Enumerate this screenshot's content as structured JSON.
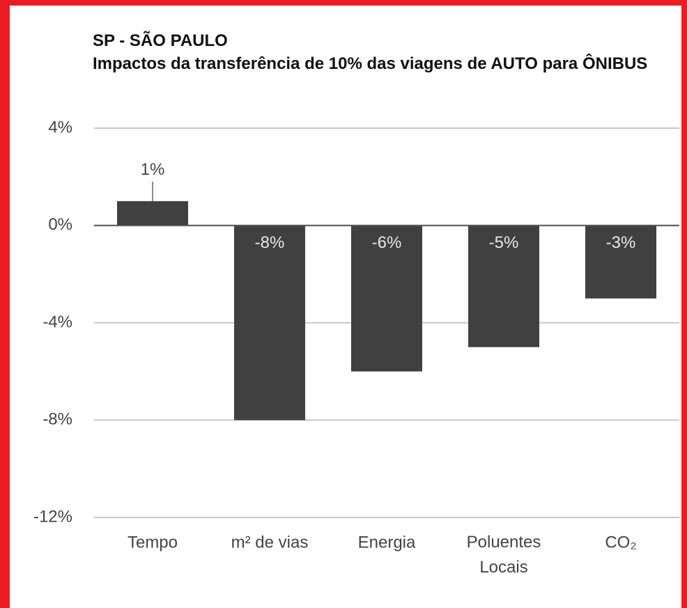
{
  "chart_data": {
    "type": "bar",
    "title": "SP - SÃO PAULO",
    "subtitle": "Impactos da transferência de 10% das viagens de AUTO para ÔNIBUS",
    "categories": [
      "Tempo",
      "m² de vias",
      "Energia",
      "Poluentes Locais",
      "CO₂"
    ],
    "values": [
      1,
      -8,
      -6,
      -5,
      -3
    ],
    "value_labels": [
      "1%",
      "-8%",
      "-6%",
      "-5%",
      "-3%"
    ],
    "color": "#404040",
    "ylim": [
      -12,
      4
    ],
    "yticks": [
      {
        "value": 4,
        "label": "4%"
      },
      {
        "value": 0,
        "label": "0%"
      },
      {
        "value": -4,
        "label": "-4%"
      },
      {
        "value": -8,
        "label": "-8%"
      },
      {
        "value": -12,
        "label": "-12%"
      }
    ],
    "grid": true
  }
}
